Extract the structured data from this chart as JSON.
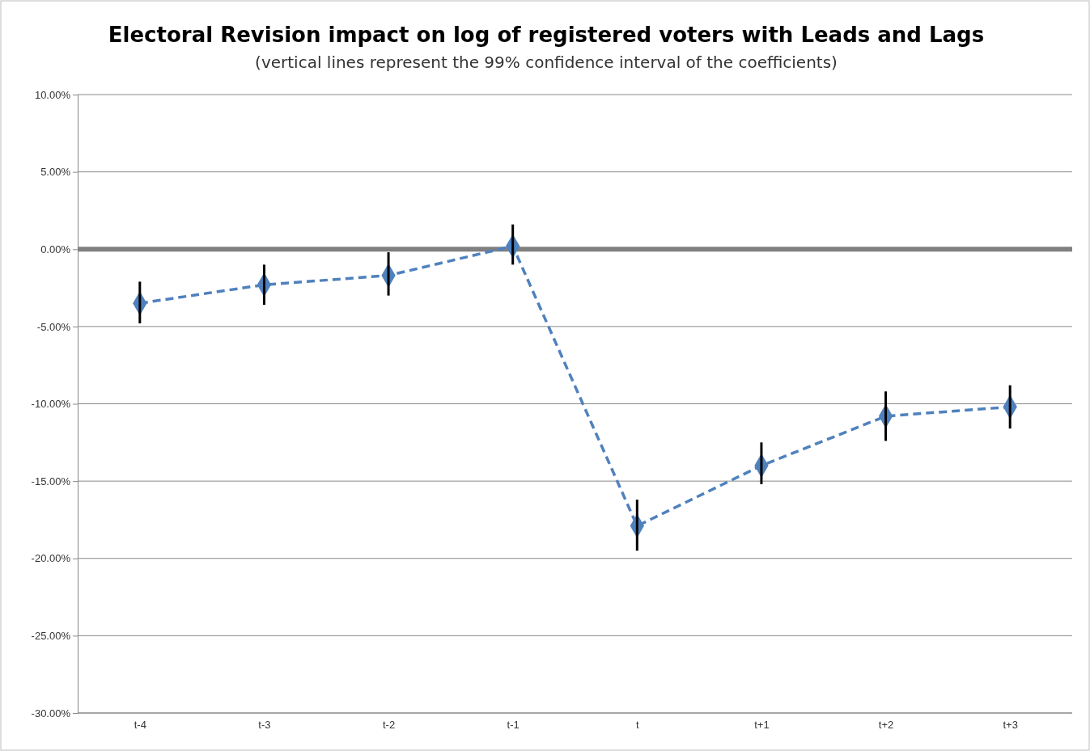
{
  "chart_data": {
    "type": "line",
    "title": "Electoral Revision impact on log of registered voters with Leads and Lags",
    "subtitle": "(vertical lines represent  the 99% confidence interval of the coefficients)",
    "categories": [
      "t-4",
      "t-3",
      "t-2",
      "t-1",
      "t",
      "t+1",
      "t+2",
      "t+3"
    ],
    "series": [
      {
        "color": "#4f81bd",
        "values": [
          -3.5,
          -2.3,
          -1.7,
          0.2,
          -17.9,
          -14.0,
          -10.8,
          -10.2
        ],
        "errors": [
          [
            -4.8,
            -2.1
          ],
          [
            -3.6,
            -1.0
          ],
          [
            -3.0,
            -0.2
          ],
          [
            -1.0,
            1.6
          ],
          [
            -19.5,
            -16.2
          ],
          [
            -15.2,
            -12.5
          ],
          [
            -12.4,
            -9.2
          ],
          [
            -11.6,
            -8.8
          ]
        ]
      }
    ],
    "ylim": [
      -30,
      10
    ],
    "yticks": [
      {
        "value": 10,
        "label": "10.00%"
      },
      {
        "value": 5,
        "label": "5.00%"
      },
      {
        "value": 0,
        "label": "0.00%"
      },
      {
        "value": -5,
        "label": "-5.00%"
      },
      {
        "value": -10,
        "label": "-10.00%"
      },
      {
        "value": -15,
        "label": "-15.00%"
      },
      {
        "value": -20,
        "label": "-20.00%"
      },
      {
        "value": -25,
        "label": "-25.00%"
      },
      {
        "value": -30,
        "label": "-30.00%"
      }
    ],
    "grid": "y",
    "marker": "diamond",
    "line_style": "dashed",
    "ref_lines": [
      {
        "axis": "y",
        "value": 0,
        "color": "#808080"
      }
    ]
  }
}
